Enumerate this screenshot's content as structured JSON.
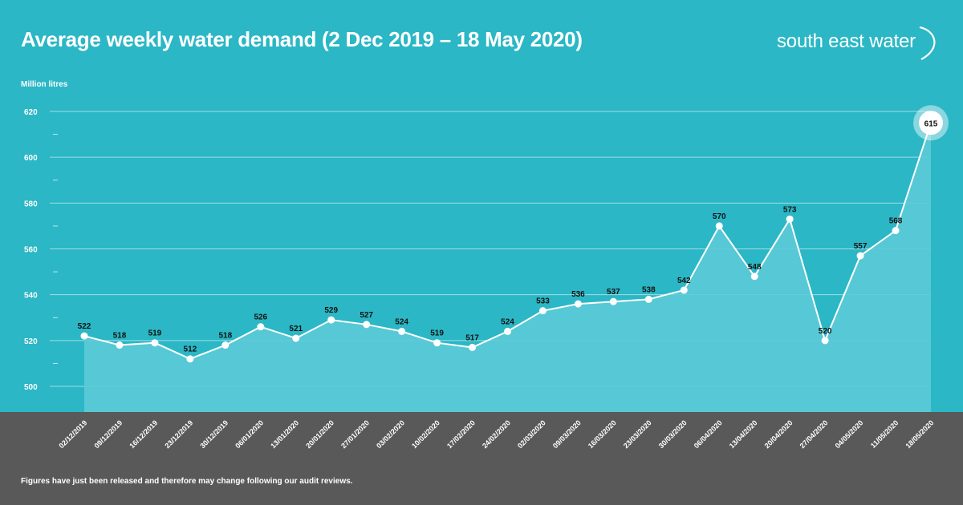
{
  "header": {
    "title": "Average weekly water demand (2 Dec 2019 – 18 May 2020)",
    "logo_text": "south east water"
  },
  "footer": {
    "note": "Figures have just been released and therefore may change following our audit reviews."
  },
  "colors": {
    "background": "#2bb7c5",
    "footer_band": "#595959",
    "line": "#ffffff",
    "area": "#5ccad6"
  },
  "chart_data": {
    "type": "area",
    "title": "Average weekly water demand (2 Dec 2019 – 18 May 2020)",
    "ylabel": "Million litres",
    "xlabel": "",
    "ylim": [
      490,
      620
    ],
    "yticks": [
      500,
      520,
      540,
      560,
      580,
      600,
      620
    ],
    "grid": true,
    "categories": [
      "02/12/2019",
      "09/12/2019",
      "16/12/2019",
      "23/12/2019",
      "30/12/2019",
      "06/01/2020",
      "13/01/2020",
      "20/01/2020",
      "27/01/2020",
      "03/02/2020",
      "10/02/2020",
      "17/02/2020",
      "24/02/2020",
      "02/03/2020",
      "09/03/2020",
      "16/03/2020",
      "23/03/2020",
      "30/03/2020",
      "06/04/2020",
      "13/04/2020",
      "20/04/2020",
      "27/04/2020",
      "04/05/2020",
      "11/05/2020",
      "18/05/2020"
    ],
    "values": [
      522,
      518,
      519,
      512,
      518,
      526,
      521,
      529,
      527,
      524,
      519,
      517,
      524,
      533,
      536,
      537,
      538,
      542,
      570,
      548,
      573,
      520,
      557,
      568,
      615
    ],
    "highlight": "18/05/2020"
  }
}
